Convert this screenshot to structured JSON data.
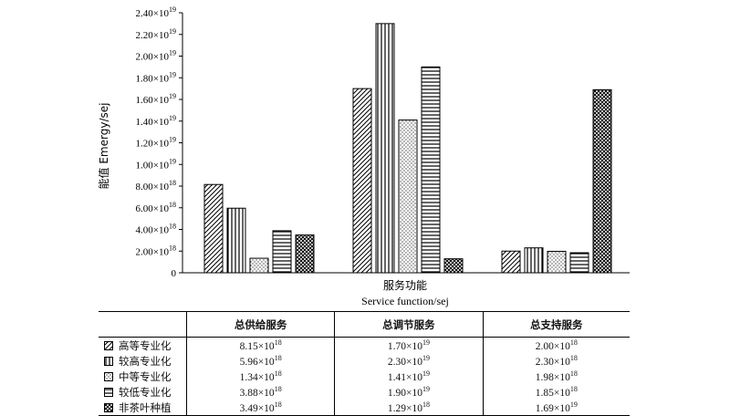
{
  "chart_data": {
    "type": "bar",
    "ylabel": "能值 Emergy/sej",
    "xlabel_cn": "服务功能",
    "xlabel_en": "Service function/sej",
    "ylim": [
      0,
      2.4e+19
    ],
    "y_ticks": [
      {
        "value": 0,
        "mant": "0",
        "exp": ""
      },
      {
        "value": 2e+18,
        "mant": "2.00×10",
        "exp": "18"
      },
      {
        "value": 4e+18,
        "mant": "4.00×10",
        "exp": "18"
      },
      {
        "value": 6e+18,
        "mant": "6.00×10",
        "exp": "18"
      },
      {
        "value": 8e+18,
        "mant": "8.00×10",
        "exp": "18"
      },
      {
        "value": 1e+19,
        "mant": "1.00×10",
        "exp": "19"
      },
      {
        "value": 1.2e+19,
        "mant": "1.20×10",
        "exp": "19"
      },
      {
        "value": 1.4e+19,
        "mant": "1.40×10",
        "exp": "19"
      },
      {
        "value": 1.6e+19,
        "mant": "1.60×10",
        "exp": "19"
      },
      {
        "value": 1.8e+19,
        "mant": "1.80×10",
        "exp": "19"
      },
      {
        "value": 2e+19,
        "mant": "2.00×10",
        "exp": "19"
      },
      {
        "value": 2.2e+19,
        "mant": "2.20×10",
        "exp": "19"
      },
      {
        "value": 2.4e+19,
        "mant": "2.40×10",
        "exp": "19"
      }
    ],
    "categories": [
      "总供给服务",
      "总调节服务",
      "总支持服务"
    ],
    "series": [
      {
        "name": "高等专业化",
        "pattern": "diagonal",
        "values": [
          8.15e+18,
          1.7e+19,
          2e+18
        ],
        "labels": [
          {
            "m": "8.15×10",
            "e": "18"
          },
          {
            "m": "1.70×10",
            "e": "19"
          },
          {
            "m": "2.00×10",
            "e": "18"
          }
        ]
      },
      {
        "name": "较高专业化",
        "pattern": "vertical",
        "values": [
          5.96e+18,
          2.3e+19,
          2.3e+18
        ],
        "labels": [
          {
            "m": "5.96×10",
            "e": "18"
          },
          {
            "m": "2.30×10",
            "e": "19"
          },
          {
            "m": "2.30×10",
            "e": "18"
          }
        ]
      },
      {
        "name": "中等专业化",
        "pattern": "dots",
        "values": [
          1.34e+18,
          1.41e+19,
          1.98e+18
        ],
        "labels": [
          {
            "m": "1.34×10",
            "e": "18"
          },
          {
            "m": "1.41×10",
            "e": "19"
          },
          {
            "m": "1.98×10",
            "e": "18"
          }
        ]
      },
      {
        "name": "较低专业化",
        "pattern": "horizontal",
        "values": [
          3.88e+18,
          1.9e+19,
          1.85e+18
        ],
        "labels": [
          {
            "m": "3.88×10",
            "e": "18"
          },
          {
            "m": "1.90×10",
            "e": "19"
          },
          {
            "m": "1.85×10",
            "e": "18"
          }
        ]
      },
      {
        "name": "非茶叶种植",
        "pattern": "crosshatch",
        "values": [
          3.49e+18,
          1.29e+18,
          1.69e+19
        ],
        "labels": [
          {
            "m": "3.49×10",
            "e": "18"
          },
          {
            "m": "1.29×10",
            "e": "18"
          },
          {
            "m": "1.69×10",
            "e": "19"
          }
        ]
      }
    ]
  }
}
